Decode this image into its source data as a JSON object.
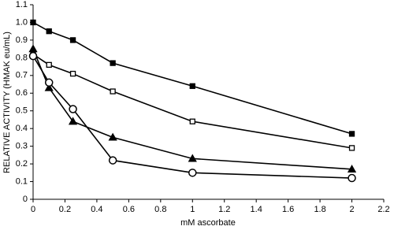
{
  "chart_data": {
    "type": "line",
    "x_label": "mM ascorbate",
    "y_label": "RELATIVE ACTIVITY (HMAK eu/mL)",
    "x": [
      0,
      0.1,
      0.25,
      0.5,
      1,
      2
    ],
    "series": [
      {
        "color": "#000000",
        "marker": "square-filled",
        "values": [
          1.0,
          0.95,
          0.9,
          0.77,
          0.64,
          0.37
        ]
      },
      {
        "color": "#000000",
        "marker": "square-open",
        "values": [
          0.82,
          0.76,
          0.71,
          0.61,
          0.44,
          0.29
        ]
      },
      {
        "color": "#000000",
        "marker": "triangle-filled",
        "values": [
          0.85,
          0.63,
          0.44,
          0.35,
          0.23,
          0.17
        ]
      },
      {
        "color": "#000000",
        "marker": "circle-open",
        "values": [
          0.81,
          0.66,
          0.51,
          0.22,
          0.15,
          0.12
        ]
      }
    ],
    "xlim": [
      0,
      2.2
    ],
    "xticks": [
      0,
      0.2,
      0.4,
      0.6,
      0.8,
      1,
      1.2,
      1.4,
      1.6,
      1.8,
      2,
      2.2
    ],
    "ylim": [
      0,
      1.1
    ],
    "yticks": [
      0,
      0.1,
      0.2,
      0.3,
      0.4,
      0.5,
      0.6,
      0.7,
      0.8,
      0.9,
      {
        "value": 1,
        "label": "1.0"
      },
      1.1
    ],
    "grid": false
  }
}
